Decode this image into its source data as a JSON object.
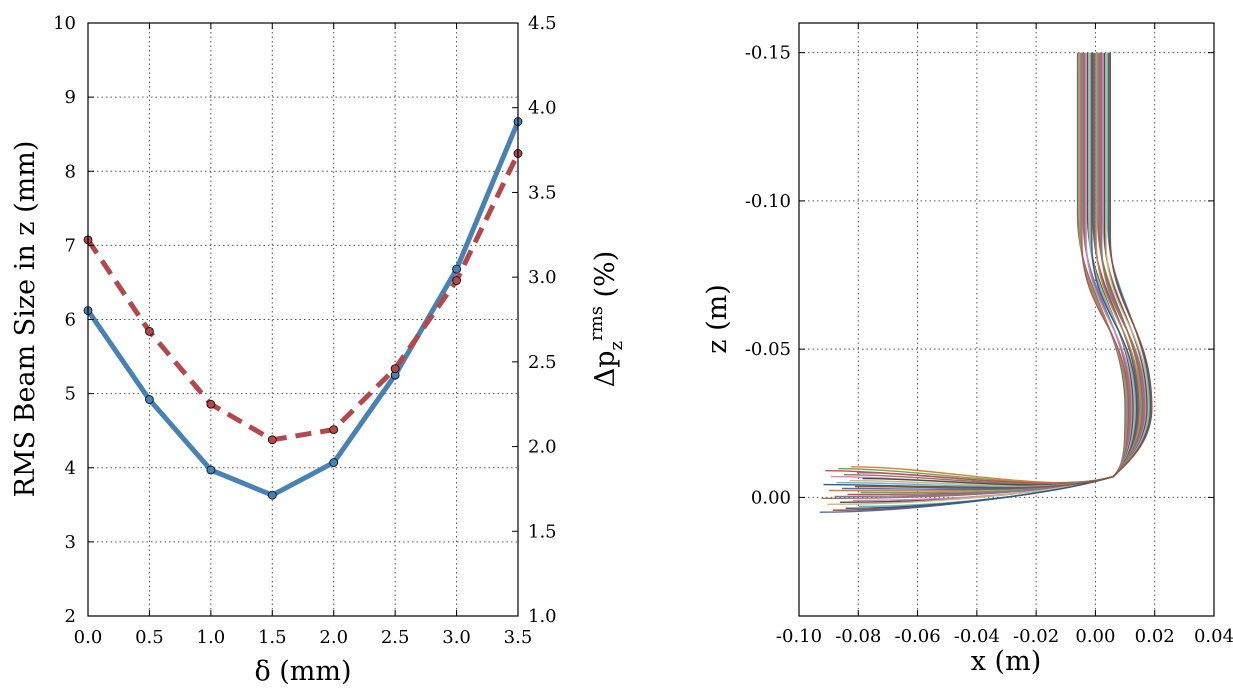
{
  "chart_data": [
    {
      "type": "line",
      "title": "",
      "xlabel": "δ (mm)",
      "ylabel": "RMS Beam Size in z (mm)",
      "y2label_parts": [
        "Δp",
        "z",
        "rms",
        " (%)"
      ],
      "xlim": [
        0,
        3.5
      ],
      "ylim": [
        2,
        10
      ],
      "y2lim": [
        1.0,
        4.5
      ],
      "xticks": [
        "0.0",
        "0.5",
        "1.0",
        "1.5",
        "2.0",
        "2.5",
        "3.0",
        "3.5"
      ],
      "yticks": [
        "2",
        "3",
        "4",
        "5",
        "6",
        "7",
        "8",
        "9",
        "10"
      ],
      "y2ticks": [
        "1.0",
        "1.5",
        "2.0",
        "2.5",
        "3.0",
        "3.5",
        "4.0",
        "4.5"
      ],
      "grid": true,
      "series": [
        {
          "name": "RMS Beam Size in z",
          "axis": "left",
          "color": "#4682b4",
          "style": "solid",
          "x": [
            0.0,
            0.5,
            1.0,
            1.5,
            2.0,
            2.5,
            3.0,
            3.5
          ],
          "values": [
            6.12,
            4.92,
            3.97,
            3.63,
            4.07,
            5.25,
            6.68,
            8.67
          ]
        },
        {
          "name": "Δp_z rms",
          "axis": "right",
          "color": "#b5474a",
          "style": "dashed",
          "x": [
            0.0,
            0.5,
            1.0,
            1.5,
            2.0,
            2.5,
            3.0,
            3.5
          ],
          "values": [
            3.22,
            2.68,
            2.25,
            2.04,
            2.1,
            2.46,
            2.98,
            3.73
          ]
        }
      ]
    },
    {
      "type": "line",
      "title": "",
      "xlabel": "x (m)",
      "ylabel": "z (m)",
      "xlim": [
        -0.1,
        0.04
      ],
      "ylim": [
        0.04,
        -0.16
      ],
      "xticks": [
        "-0.10",
        "-0.08",
        "-0.06",
        "-0.04",
        "-0.02",
        "0.00",
        "0.02",
        "0.04"
      ],
      "yticks": [
        "-0.15",
        "-0.10",
        "-0.05",
        "0.00"
      ],
      "ytick_values": [
        -0.15,
        -0.1,
        -0.05,
        0.0
      ],
      "grid": true,
      "description_series": "bundle of particle trajectories",
      "bundle": {
        "count": 24,
        "start_x_range": [
          -0.006,
          0.005
        ],
        "start_z": -0.15,
        "bend_z_range": [
          -0.095,
          -0.085
        ],
        "max_x_range": [
          0.01,
          0.019
        ],
        "max_x_z": -0.03,
        "pivot": [
          0.006,
          -0.007
        ],
        "end_x_range": [
          -0.093,
          -0.078
        ],
        "end_z_range": [
          0.005,
          -0.011
        ],
        "colors": [
          "#4a72b0",
          "#e07b39",
          "#6aa84f",
          "#c44e52",
          "#8172b2",
          "#937860",
          "#d684bd",
          "#4c4c4c",
          "#ccb974",
          "#64b5cd",
          "#2b5c8a",
          "#a04a2e"
        ]
      }
    }
  ]
}
